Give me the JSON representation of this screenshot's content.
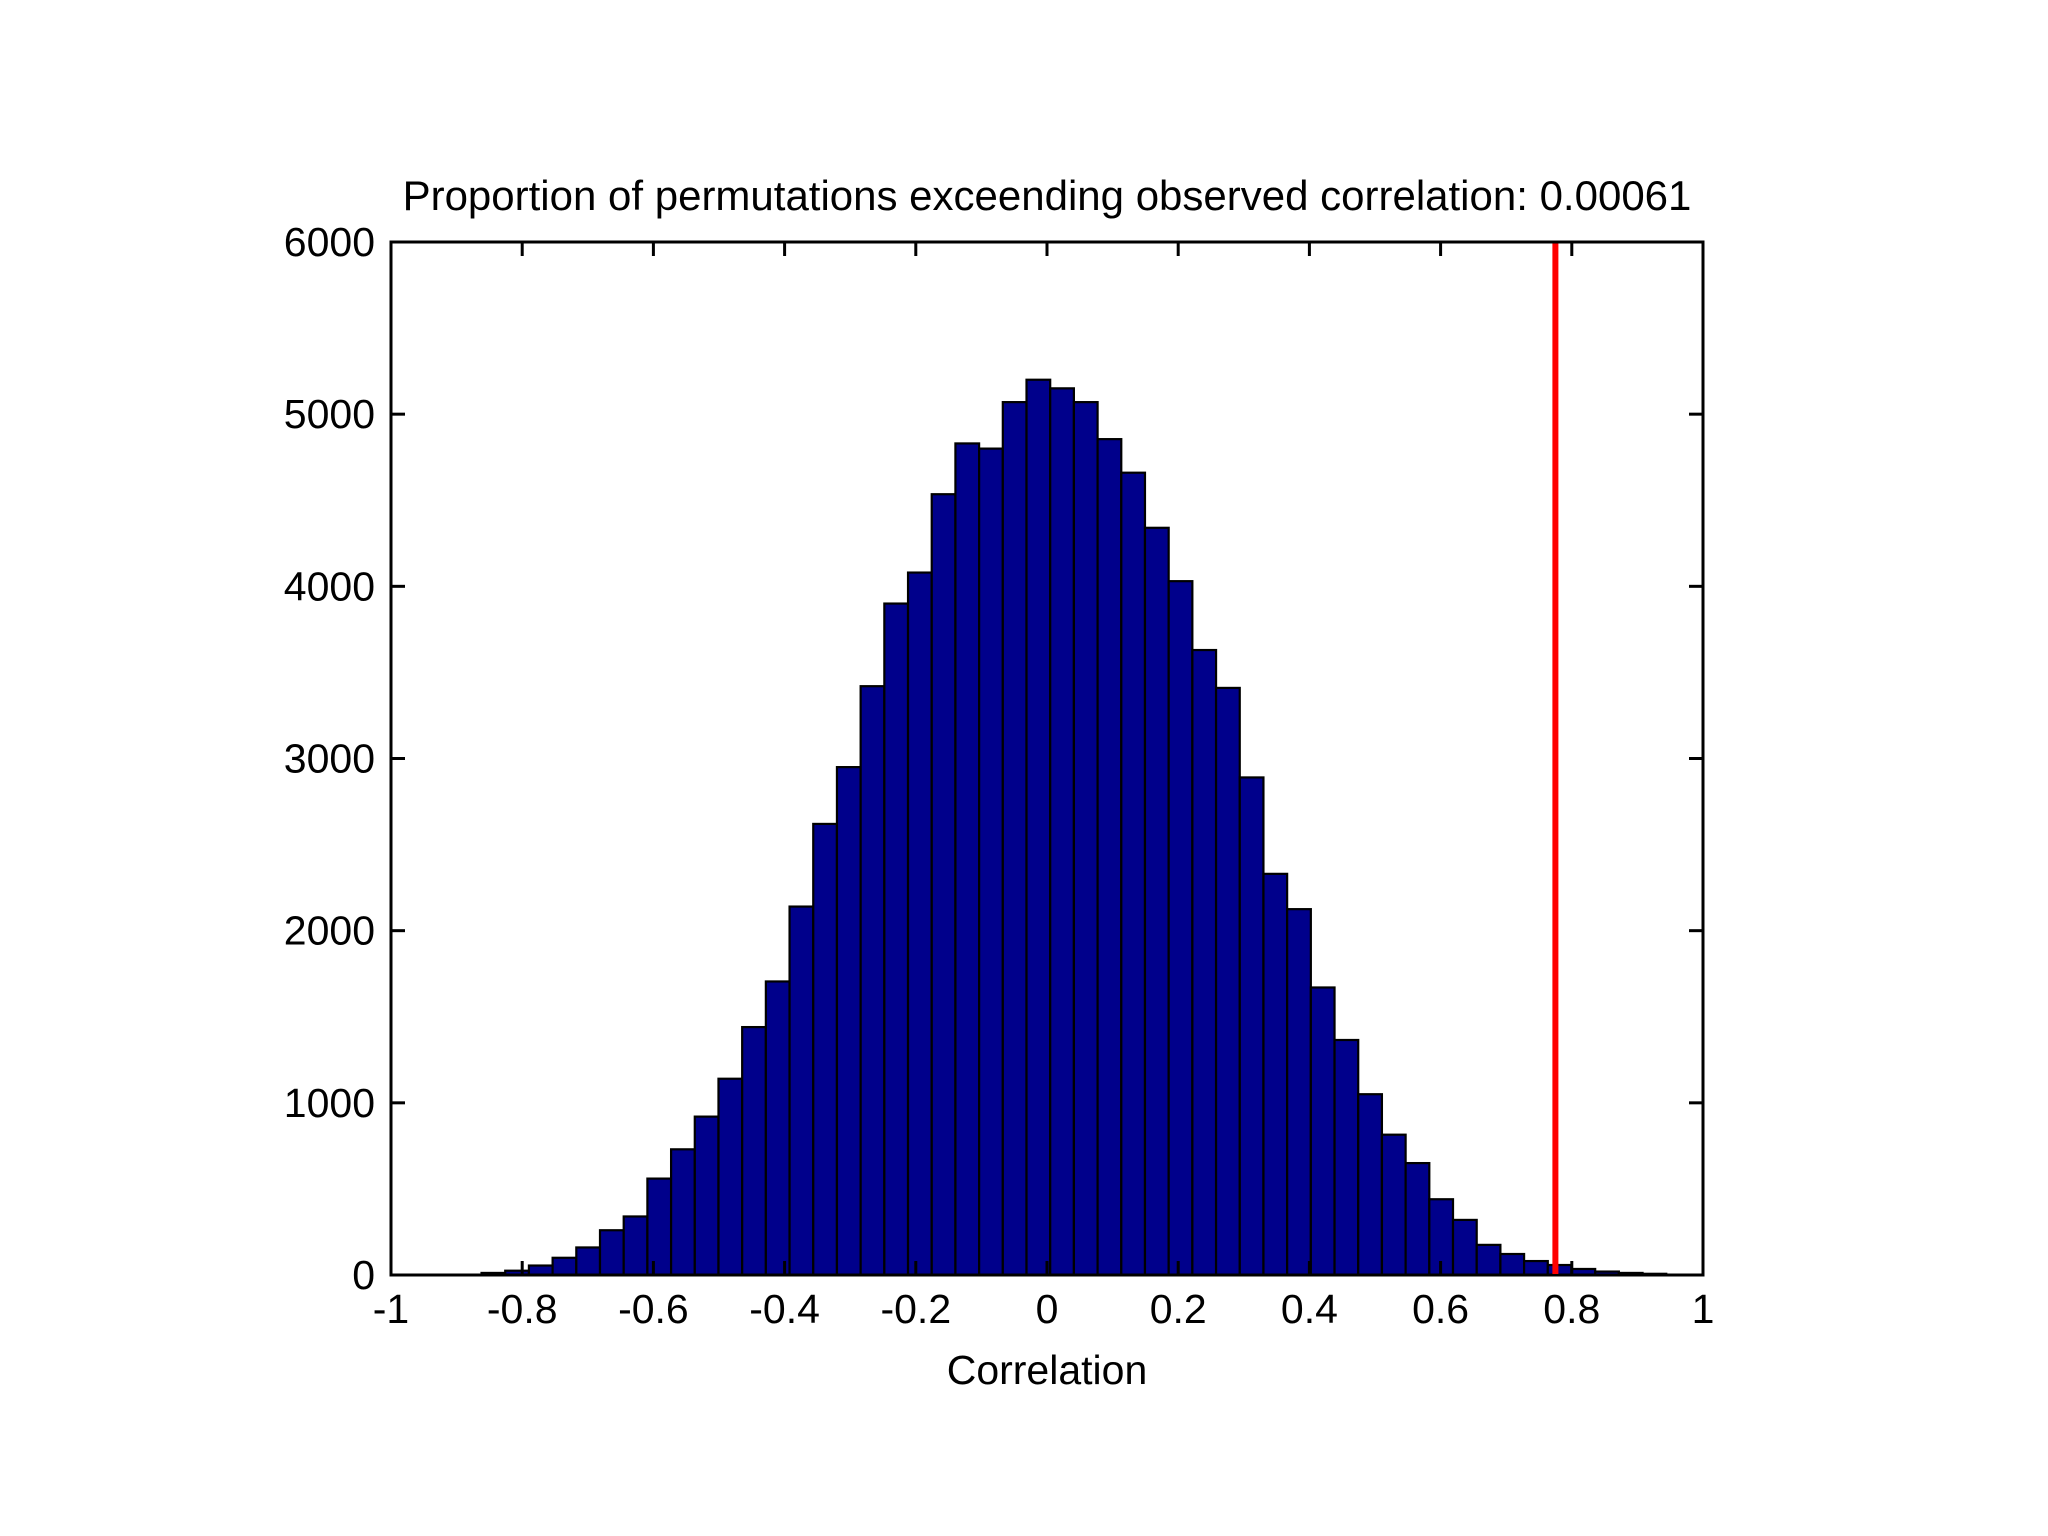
{
  "figure": {
    "background": "#ffffff"
  },
  "chart_data": {
    "type": "bar",
    "subtype": "histogram",
    "title": "Proportion of permutations exceending observed correlation: 0.00061",
    "proportion_exceeding": 0.00061,
    "xlabel": "Correlation",
    "ylabel": "",
    "xlim": [
      -1,
      1
    ],
    "ylim": [
      0,
      6000
    ],
    "grid": false,
    "legend": null,
    "x_tick_values": [
      -1,
      -0.8,
      -0.6,
      -0.4,
      -0.2,
      0,
      0.2,
      0.4,
      0.6,
      0.8,
      1
    ],
    "x_tick_labels": [
      "-1",
      "-0.8",
      "-0.6",
      "-0.4",
      "-0.2",
      "0",
      "0.2",
      "0.4",
      "0.6",
      "0.8",
      "1"
    ],
    "y_tick_values": [
      0,
      1000,
      2000,
      3000,
      4000,
      5000,
      6000
    ],
    "y_tick_labels": [
      "0",
      "1000",
      "2000",
      "3000",
      "4000",
      "5000",
      "6000"
    ],
    "bin_start": -0.862,
    "bin_width": 0.03612,
    "counts": [
      12,
      25,
      55,
      100,
      160,
      260,
      340,
      560,
      730,
      920,
      1140,
      1440,
      1705,
      2140,
      2620,
      2950,
      3420,
      3900,
      4080,
      4535,
      4830,
      4800,
      5070,
      5200,
      5150,
      5070,
      4855,
      4660,
      4340,
      4030,
      3630,
      3410,
      2890,
      2330,
      2125,
      1670,
      1365,
      1050,
      815,
      650,
      440,
      320,
      175,
      122,
      81,
      58,
      35,
      20,
      12,
      7
    ],
    "bar_color": "#00008b",
    "bar_edge_color": "#000000",
    "vline": {
      "x": 0.775,
      "color": "#ff0000",
      "meaning": "observed correlation"
    },
    "axis_color": "#000000"
  }
}
